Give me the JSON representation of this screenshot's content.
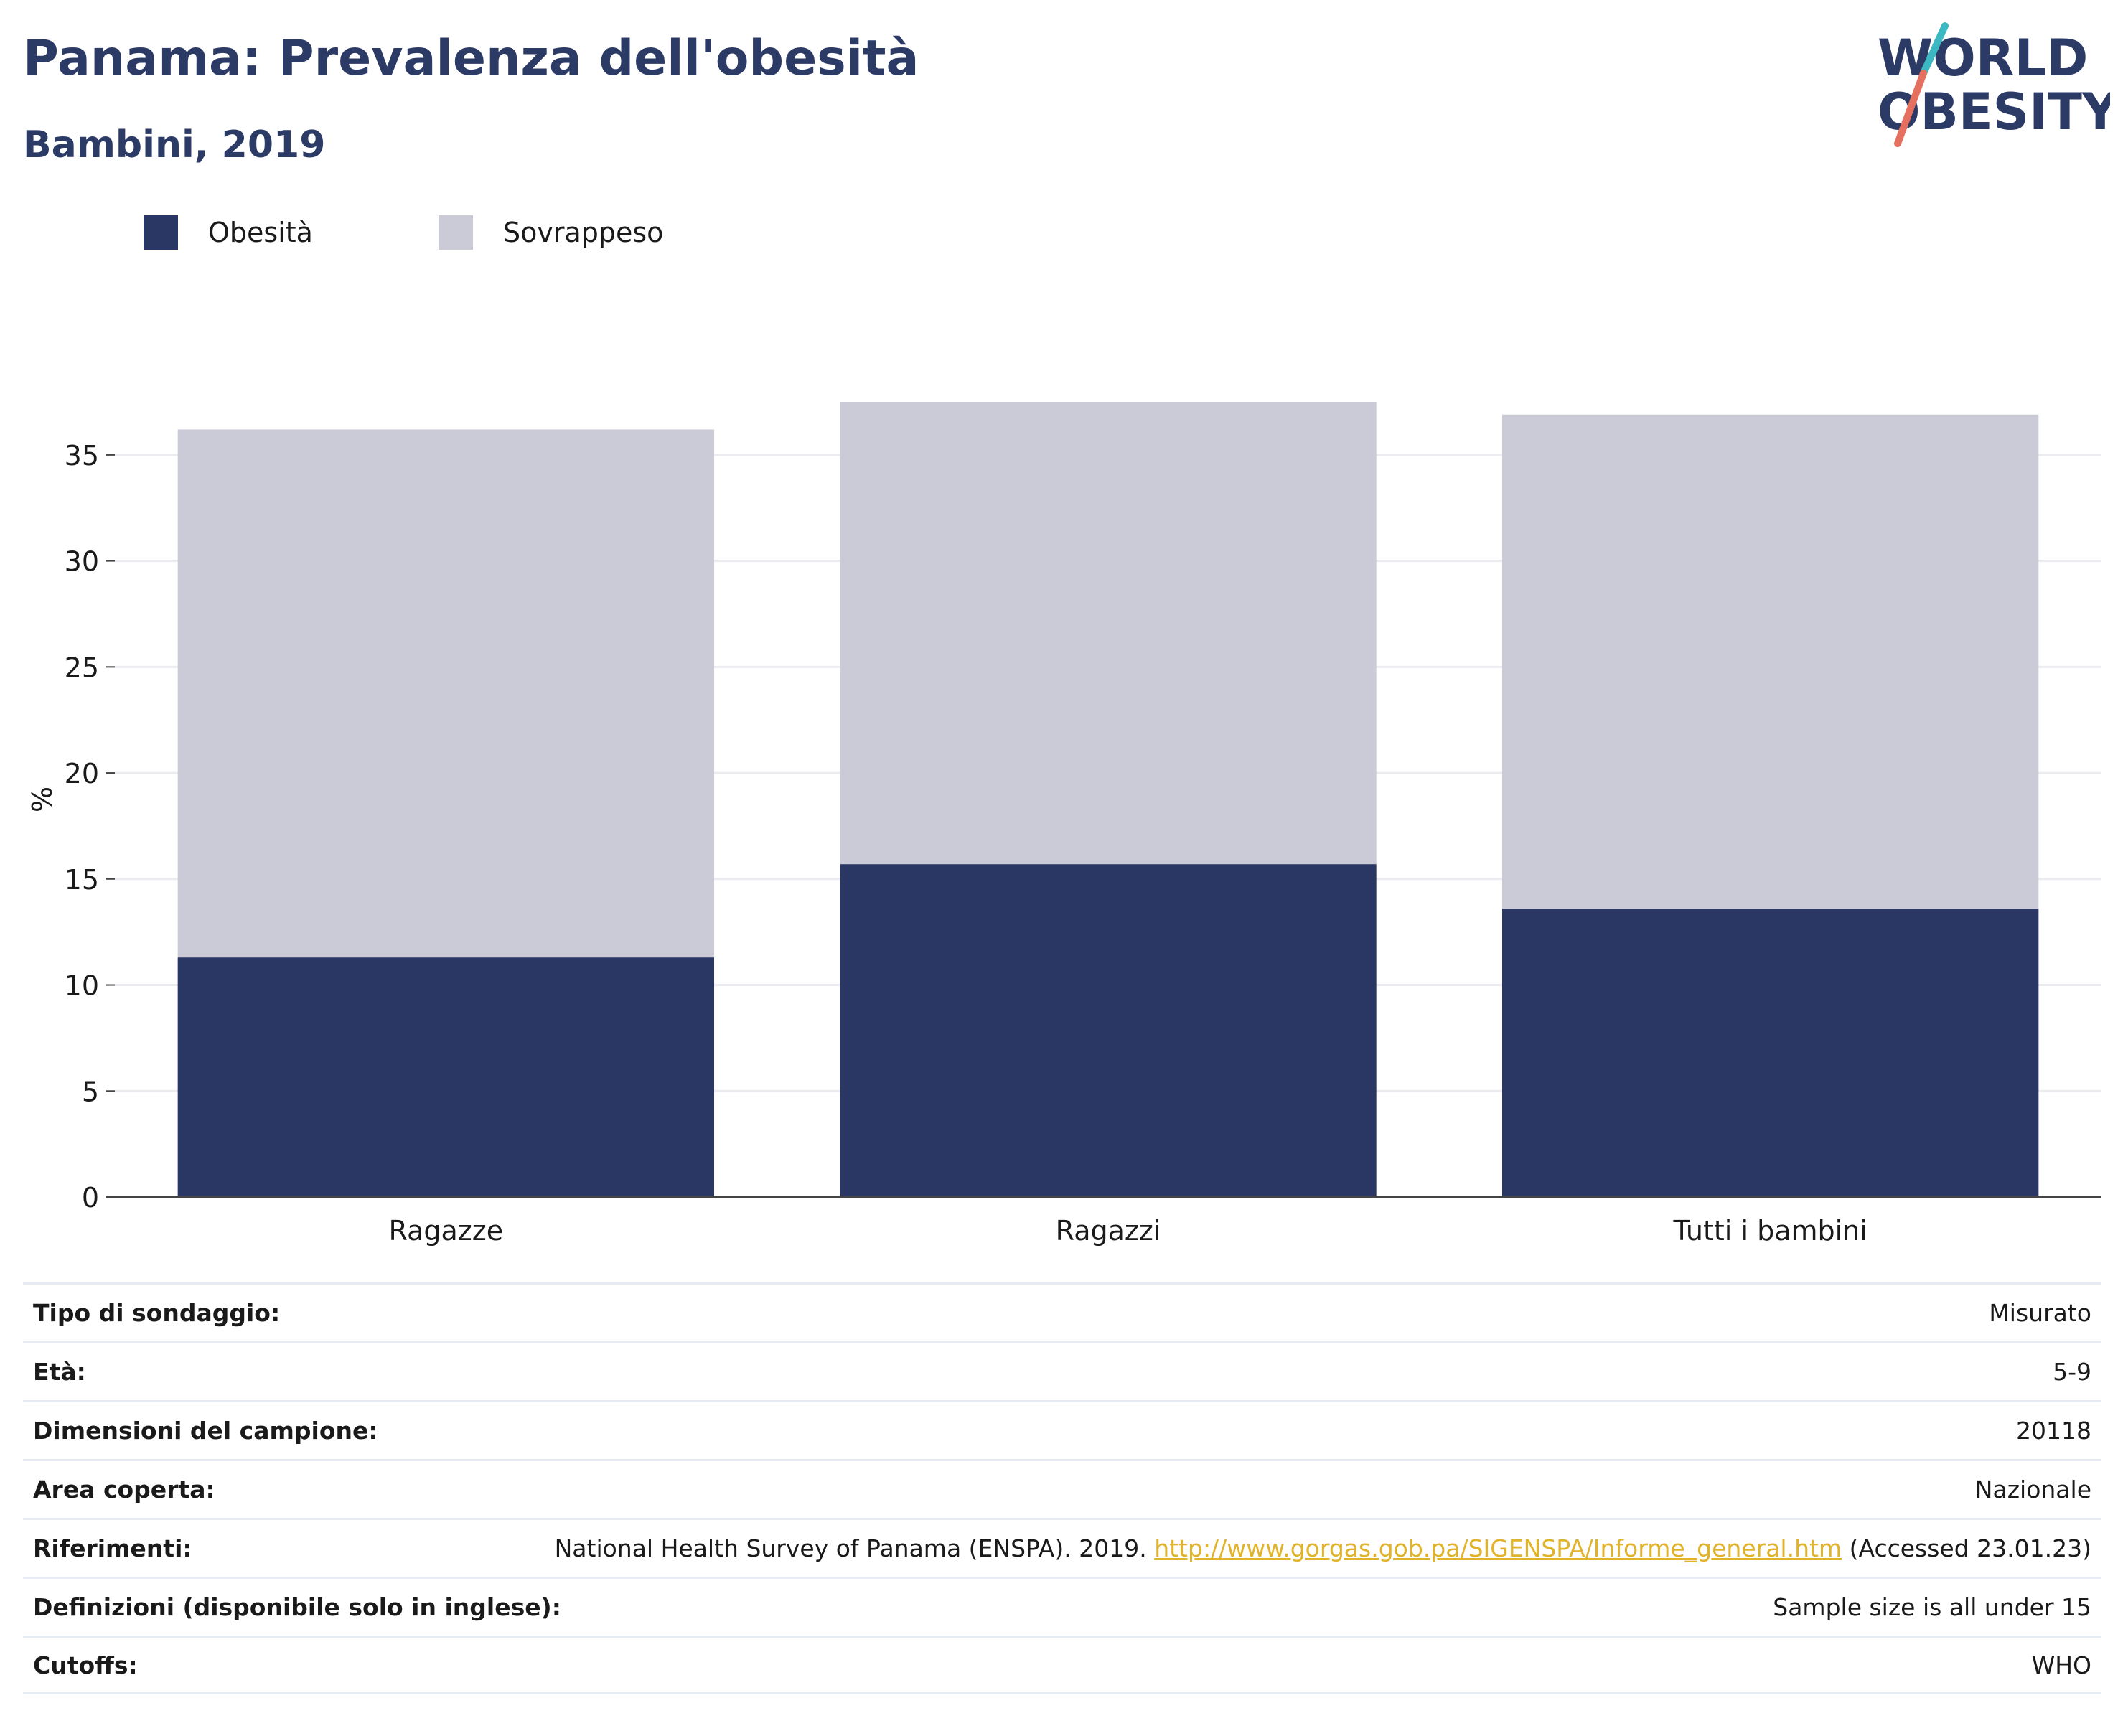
{
  "header": {
    "title": "Panama: Prevalenza dell'obesità",
    "subtitle": "Bambini, 2019",
    "logo_line1": "WORLD",
    "logo_line2": "OBESITY"
  },
  "colors": {
    "title": "#2c3a66",
    "obesity": "#2a3663",
    "overweight": "#cacbd7",
    "grid": "#ececf0",
    "link": "#e0b32a",
    "logo_teal": "#3cb8c2",
    "logo_coral": "#e6705f"
  },
  "chart_data": {
    "type": "bar",
    "stacked": true,
    "categories": [
      "Ragazze",
      "Ragazzi",
      "Tutti i bambini"
    ],
    "series": [
      {
        "name": "Obesità",
        "values": [
          11.3,
          15.7,
          13.6
        ],
        "color": "#2a3663"
      },
      {
        "name": "Sovrappeso",
        "values": [
          24.9,
          21.8,
          23.3
        ],
        "color": "#cacbd7"
      }
    ],
    "ylabel": "%",
    "ylim": [
      0,
      37.5
    ],
    "yticks": [
      0,
      5,
      10,
      15,
      20,
      25,
      30,
      35
    ],
    "grid": true,
    "legend_position": "top-left"
  },
  "info": {
    "rows": [
      {
        "label": "Tipo di sondaggio:",
        "value": "Misurato"
      },
      {
        "label": "Età:",
        "value": "5-9"
      },
      {
        "label": "Dimensioni del campione:",
        "value": "20118"
      },
      {
        "label": "Area coperta:",
        "value": "Nazionale"
      },
      {
        "label": "Riferimenti:",
        "value_prefix": "National Health Survey of Panama (ENSPA). 2019. ",
        "link": "http://www.gorgas.gob.pa/SIGENSPA/Informe_general.htm",
        "value_suffix": " (Accessed 23.01.23)"
      },
      {
        "label": "Definizioni (disponibile solo in inglese):",
        "value": "Sample size is all under 15"
      },
      {
        "label": "Cutoffs:",
        "value": "WHO"
      }
    ]
  }
}
